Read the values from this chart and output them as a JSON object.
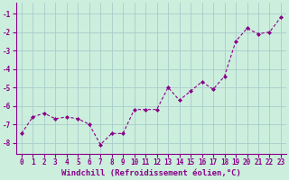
{
  "x": [
    0,
    1,
    2,
    3,
    4,
    5,
    6,
    7,
    8,
    9,
    10,
    11,
    12,
    13,
    14,
    15,
    16,
    17,
    18,
    19,
    20,
    21,
    22,
    23
  ],
  "y": [
    -7.5,
    -6.6,
    -6.4,
    -6.7,
    -6.6,
    -6.7,
    -7.0,
    -8.1,
    -7.5,
    -7.5,
    -6.2,
    -6.2,
    -6.2,
    -5.0,
    -5.7,
    -5.2,
    -4.7,
    -5.1,
    -4.4,
    -2.5,
    -1.8,
    -2.1,
    -2.0,
    -1.2
  ],
  "line_color": "#880088",
  "marker": "D",
  "marker_size": 2.0,
  "line_width": 0.8,
  "bg_color": "#cceedd",
  "grid_color": "#aacccc",
  "xlabel": "Windchill (Refroidissement éolien,°C)",
  "xlabel_fontsize": 6.5,
  "tick_fontsize": 5.5,
  "ylim": [
    -8.6,
    -0.4
  ],
  "xlim": [
    -0.5,
    23.5
  ],
  "yticks": [
    -8,
    -7,
    -6,
    -5,
    -4,
    -3,
    -2,
    -1
  ],
  "xticks": [
    0,
    1,
    2,
    3,
    4,
    5,
    6,
    7,
    8,
    9,
    10,
    11,
    12,
    13,
    14,
    15,
    16,
    17,
    18,
    19,
    20,
    21,
    22,
    23
  ]
}
